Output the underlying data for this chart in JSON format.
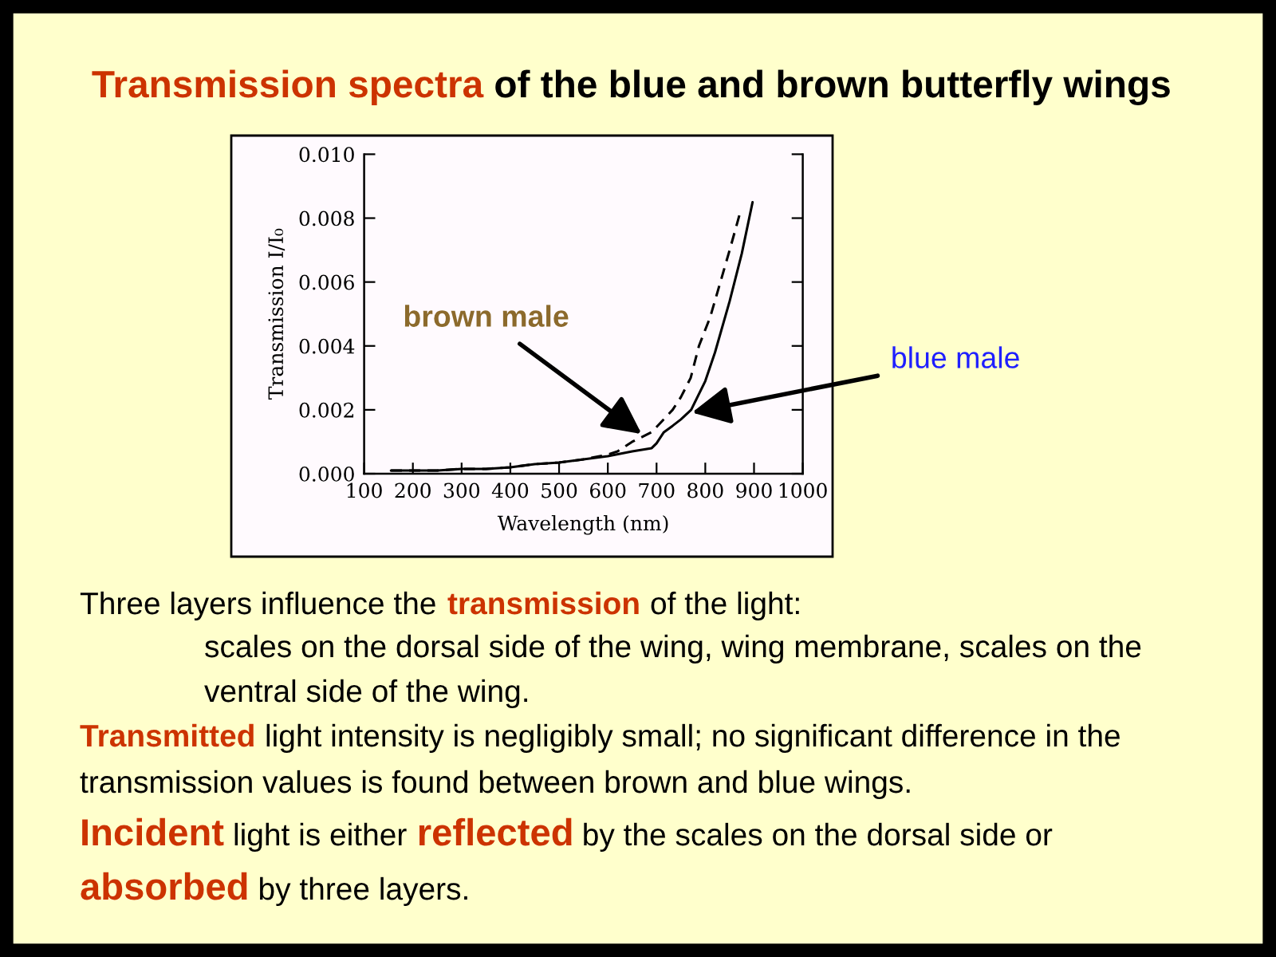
{
  "chart_data": {
    "type": "line",
    "title": "Transmission spectra of the blue and brown butterfly wings",
    "xlabel": "Wavelength (nm)",
    "ylabel": "Transmission I/I₀",
    "xlim": [
      100,
      1000
    ],
    "xticks": [
      100,
      200,
      300,
      400,
      500,
      600,
      700,
      800,
      900,
      1000
    ],
    "ylim": [
      0,
      0.01
    ],
    "yticks": [
      {
        "value": 0,
        "label": "0.000"
      },
      {
        "value": 0.002,
        "label": "0.002"
      },
      {
        "value": 0.004,
        "label": "0.004"
      },
      {
        "value": 0.006,
        "label": "0.006"
      },
      {
        "value": 0.008,
        "label": "0.008"
      },
      {
        "value": 0.01,
        "label": "0.010"
      }
    ],
    "series": [
      {
        "color": "#000000",
        "line_style": "dashed",
        "x": [
          155,
          200,
          250,
          300,
          350,
          400,
          450,
          500,
          550,
          600,
          620,
          650,
          690,
          733,
          750,
          770,
          787,
          810,
          831,
          850,
          872
        ],
        "values": [
          0.0001,
          0.0001,
          0.0001,
          0.00015,
          0.00015,
          0.0002,
          0.0003,
          0.00035,
          0.00045,
          0.0006,
          0.0007,
          0.001,
          0.0013,
          0.002,
          0.0024,
          0.003,
          0.004,
          0.0049,
          0.006,
          0.007,
          0.0082
        ]
      },
      {
        "color": "#000000",
        "line_style": "solid",
        "x": [
          155,
          200,
          250,
          300,
          350,
          400,
          450,
          500,
          550,
          600,
          650,
          690,
          700,
          715,
          733,
          750,
          771,
          800,
          820,
          850,
          860,
          875,
          897
        ],
        "values": [
          0.0001,
          0.0001,
          0.0001,
          0.00015,
          0.00015,
          0.0002,
          0.0003,
          0.00035,
          0.00045,
          0.00055,
          0.0007,
          0.0008,
          0.00095,
          0.0013,
          0.0015,
          0.0017,
          0.002,
          0.0029,
          0.0038,
          0.0054,
          0.006,
          0.0069,
          0.0085
        ]
      }
    ],
    "annotations": [
      {
        "text": "brown male",
        "x": 673,
        "y": 0.0012
      },
      {
        "text": "blue male",
        "x": 768,
        "y": 0.0019
      },
      "Three layers influence the transmission of the light:",
      "scales on the dorsal side of the wing, wing membrane, scales on the ventral side of the wing.",
      "Transmitted light intensity is negligibly small; no significant difference in the transmission values is found between brown and blue wings.",
      "Incident light is either reflected by the scales on the dorsal side or absorbed by three layers."
    ]
  }
}
